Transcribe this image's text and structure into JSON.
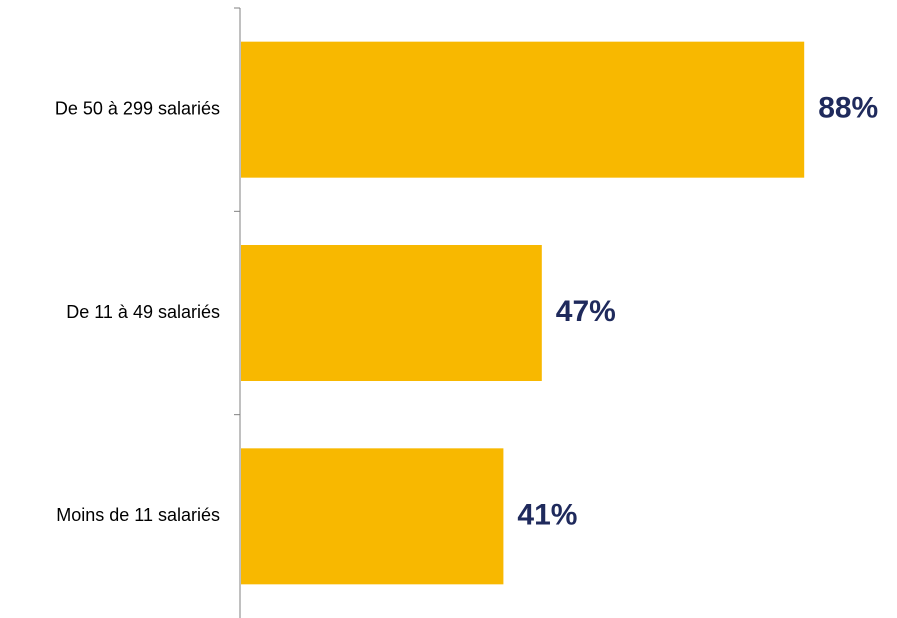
{
  "chart_data": {
    "type": "bar",
    "orientation": "horizontal",
    "categories": [
      "De 50 à 299 salariés",
      "De 11 à 49 salariés",
      "Moins de 11 salariés"
    ],
    "values": [
      88,
      47,
      41
    ],
    "value_labels": [
      "88%",
      "47%",
      "41%"
    ],
    "unit": "%",
    "xlim": [
      0,
      100
    ],
    "grid": false,
    "legend": "none",
    "bar_color": "#F8B800",
    "label_color": "#1F2A5C",
    "axis_color": "#808080"
  }
}
